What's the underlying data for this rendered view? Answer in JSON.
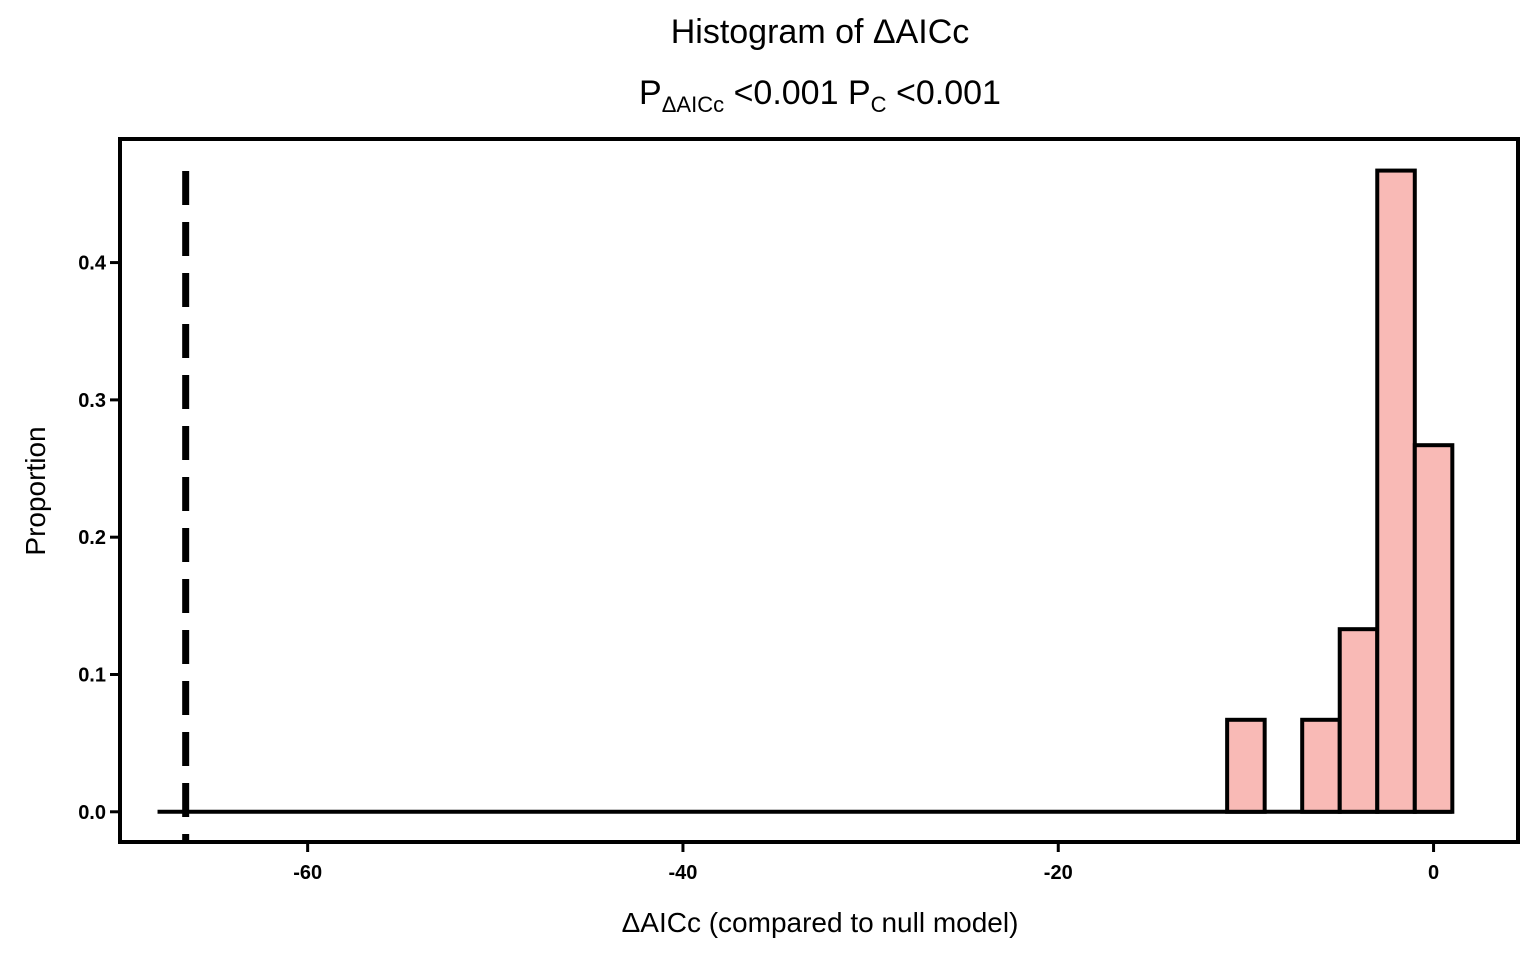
{
  "chart_data": {
    "type": "bar",
    "title": "Histogram of ΔAICc",
    "subtitle": {
      "p_label": "P",
      "p_sub": "ΔAICc",
      "p_value": "<0.001",
      "c_label": "P",
      "c_sub": "C",
      "c_value": "<0.001"
    },
    "xlabel": "ΔAICc (compared to null model)",
    "ylabel": "Proportion",
    "xlim": [
      -70,
      4.5
    ],
    "ylim": [
      -0.022,
      0.49
    ],
    "x_ticks": [
      -60,
      -40,
      -20,
      0
    ],
    "x_tick_labels": [
      "-60",
      "-40",
      "-20",
      "0"
    ],
    "y_ticks": [
      0.0,
      0.1,
      0.2,
      0.3,
      0.4
    ],
    "y_tick_labels": [
      "0.0",
      "0.1",
      "0.2",
      "0.3",
      "0.4"
    ],
    "baseline_range": [
      -68,
      1
    ],
    "bins": [
      {
        "x0": -11,
        "x1": -9,
        "value": 0.067
      },
      {
        "x0": -9,
        "x1": -7,
        "value": 0.0
      },
      {
        "x0": -7,
        "x1": -5,
        "value": 0.067
      },
      {
        "x0": -5,
        "x1": -3,
        "value": 0.133
      },
      {
        "x0": -3,
        "x1": -1,
        "value": 0.467
      },
      {
        "x0": -1,
        "x1": 1,
        "value": 0.267
      }
    ],
    "reference_line": {
      "x": -66.5,
      "style": "dashed"
    },
    "bar_fill": "#f9bab6",
    "bar_stroke": "#000000",
    "grid": false
  }
}
